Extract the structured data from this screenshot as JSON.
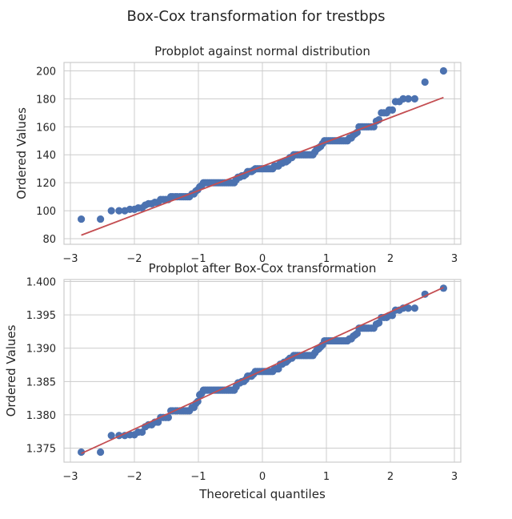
{
  "figure": {
    "title": "Box-Cox transformation for trestbps"
  },
  "chart_data": [
    {
      "type": "scatter",
      "title": "Probplot against normal distribution",
      "xlabel": "",
      "ylabel": "Ordered Values",
      "xlim": [
        -3.1,
        3.1
      ],
      "ylim": [
        76,
        206
      ],
      "xticks": [
        -3,
        -2,
        -1,
        0,
        1,
        2,
        3
      ],
      "yticks": [
        80,
        100,
        120,
        140,
        160,
        180,
        200
      ],
      "ytick_decimals": 0,
      "grid": true,
      "point_color": "#4c72b0",
      "line_color": "#c44e52",
      "fit_line": {
        "x": [
          -2.83,
          2.83
        ],
        "y": [
          82.5,
          181
        ]
      },
      "points": [
        [
          -2.83,
          94
        ],
        [
          -2.53,
          94
        ],
        [
          -2.36,
          100
        ],
        [
          -2.24,
          100
        ],
        [
          -2.15,
          100
        ],
        [
          -2.07,
          101
        ],
        [
          -2.0,
          101
        ],
        [
          -1.94,
          102
        ],
        [
          -1.88,
          102
        ],
        [
          -1.83,
          104
        ],
        [
          -1.78,
          105
        ],
        [
          -1.73,
          105
        ],
        [
          -1.68,
          106
        ],
        [
          -1.63,
          106
        ],
        [
          -1.59,
          108
        ],
        [
          -1.55,
          108
        ],
        [
          -1.51,
          108
        ],
        [
          -1.47,
          108
        ],
        [
          -1.43,
          110
        ],
        [
          -1.4,
          110
        ],
        [
          -1.36,
          110
        ],
        [
          -1.33,
          110
        ],
        [
          -1.29,
          110
        ],
        [
          -1.26,
          110
        ],
        [
          -1.23,
          110
        ],
        [
          -1.2,
          110
        ],
        [
          -1.17,
          110
        ],
        [
          -1.14,
          110
        ],
        [
          -1.1,
          112
        ],
        [
          -1.07,
          112
        ],
        [
          -1.04,
          114
        ],
        [
          -1.01,
          115
        ],
        [
          -0.98,
          117
        ],
        [
          -0.95,
          118
        ],
        [
          -0.92,
          120
        ],
        [
          -0.89,
          120
        ],
        [
          -0.86,
          120
        ],
        [
          -0.83,
          120
        ],
        [
          -0.8,
          120
        ],
        [
          -0.77,
          120
        ],
        [
          -0.74,
          120
        ],
        [
          -0.71,
          120
        ],
        [
          -0.68,
          120
        ],
        [
          -0.65,
          120
        ],
        [
          -0.62,
          120
        ],
        [
          -0.59,
          120
        ],
        [
          -0.56,
          120
        ],
        [
          -0.53,
          120
        ],
        [
          -0.5,
          120
        ],
        [
          -0.47,
          120
        ],
        [
          -0.44,
          120
        ],
        [
          -0.41,
          122
        ],
        [
          -0.38,
          124
        ],
        [
          -0.35,
          124
        ],
        [
          -0.32,
          125
        ],
        [
          -0.29,
          125
        ],
        [
          -0.26,
          126
        ],
        [
          -0.23,
          128
        ],
        [
          -0.2,
          128
        ],
        [
          -0.17,
          128
        ],
        [
          -0.14,
          129
        ],
        [
          -0.11,
          130
        ],
        [
          -0.08,
          130
        ],
        [
          -0.05,
          130
        ],
        [
          -0.02,
          130
        ],
        [
          0.01,
          130
        ],
        [
          0.04,
          130
        ],
        [
          0.07,
          130
        ],
        [
          0.1,
          130
        ],
        [
          0.13,
          130
        ],
        [
          0.16,
          130
        ],
        [
          0.19,
          132
        ],
        [
          0.22,
          132
        ],
        [
          0.25,
          132
        ],
        [
          0.28,
          134
        ],
        [
          0.31,
          134
        ],
        [
          0.34,
          135
        ],
        [
          0.37,
          135
        ],
        [
          0.4,
          136
        ],
        [
          0.43,
          138
        ],
        [
          0.46,
          138
        ],
        [
          0.49,
          140
        ],
        [
          0.52,
          140
        ],
        [
          0.55,
          140
        ],
        [
          0.58,
          140
        ],
        [
          0.61,
          140
        ],
        [
          0.64,
          140
        ],
        [
          0.67,
          140
        ],
        [
          0.7,
          140
        ],
        [
          0.73,
          140
        ],
        [
          0.76,
          140
        ],
        [
          0.79,
          140
        ],
        [
          0.82,
          142
        ],
        [
          0.85,
          144
        ],
        [
          0.88,
          145
        ],
        [
          0.91,
          146
        ],
        [
          0.94,
          148
        ],
        [
          0.97,
          150
        ],
        [
          1.0,
          150
        ],
        [
          1.03,
          150
        ],
        [
          1.06,
          150
        ],
        [
          1.09,
          150
        ],
        [
          1.12,
          150
        ],
        [
          1.15,
          150
        ],
        [
          1.18,
          150
        ],
        [
          1.21,
          150
        ],
        [
          1.24,
          150
        ],
        [
          1.27,
          150
        ],
        [
          1.3,
          150
        ],
        [
          1.33,
          150
        ],
        [
          1.36,
          152
        ],
        [
          1.39,
          152
        ],
        [
          1.42,
          154
        ],
        [
          1.45,
          155
        ],
        [
          1.48,
          156
        ],
        [
          1.51,
          160
        ],
        [
          1.54,
          160
        ],
        [
          1.57,
          160
        ],
        [
          1.6,
          160
        ],
        [
          1.63,
          160
        ],
        [
          1.66,
          160
        ],
        [
          1.7,
          160
        ],
        [
          1.74,
          160
        ],
        [
          1.78,
          164
        ],
        [
          1.82,
          165
        ],
        [
          1.86,
          170
        ],
        [
          1.9,
          170
        ],
        [
          1.94,
          170
        ],
        [
          1.98,
          172
        ],
        [
          2.03,
          172
        ],
        [
          2.08,
          178
        ],
        [
          2.14,
          178
        ],
        [
          2.2,
          180
        ],
        [
          2.28,
          180
        ],
        [
          2.38,
          180
        ],
        [
          2.54,
          192
        ],
        [
          2.83,
          200
        ]
      ]
    },
    {
      "type": "scatter",
      "title": "Probplot after Box-Cox transformation",
      "xlabel": "Theoretical quantiles",
      "ylabel": "Ordered Values",
      "xlim": [
        -3.1,
        3.1
      ],
      "ylim": [
        1.3729,
        1.4003
      ],
      "xticks": [
        -3,
        -2,
        -1,
        0,
        1,
        2,
        3
      ],
      "yticks": [
        1.375,
        1.38,
        1.385,
        1.39,
        1.395,
        1.4
      ],
      "ytick_decimals": 3,
      "grid": true,
      "point_color": "#4c72b0",
      "line_color": "#c44e52",
      "fit_line": {
        "x": [
          -2.83,
          2.83
        ],
        "y": [
          1.3742,
          1.3991
        ]
      },
      "points": [
        [
          -2.83,
          1.3744
        ],
        [
          -2.53,
          1.3744
        ],
        [
          -2.36,
          1.3769
        ],
        [
          -2.24,
          1.3769
        ],
        [
          -2.15,
          1.3769
        ],
        [
          -2.07,
          1.377
        ],
        [
          -2.0,
          1.377
        ],
        [
          -1.94,
          1.3774
        ],
        [
          -1.88,
          1.3774
        ],
        [
          -1.83,
          1.3782
        ],
        [
          -1.78,
          1.3785
        ],
        [
          -1.73,
          1.3785
        ],
        [
          -1.68,
          1.3789
        ],
        [
          -1.63,
          1.3789
        ],
        [
          -1.59,
          1.3796
        ],
        [
          -1.55,
          1.3796
        ],
        [
          -1.51,
          1.3796
        ],
        [
          -1.47,
          1.3796
        ],
        [
          -1.43,
          1.3806
        ],
        [
          -1.4,
          1.3806
        ],
        [
          -1.36,
          1.3806
        ],
        [
          -1.33,
          1.3806
        ],
        [
          -1.29,
          1.3806
        ],
        [
          -1.26,
          1.3806
        ],
        [
          -1.23,
          1.3806
        ],
        [
          -1.2,
          1.3806
        ],
        [
          -1.17,
          1.3806
        ],
        [
          -1.14,
          1.3806
        ],
        [
          -1.1,
          1.3811
        ],
        [
          -1.07,
          1.3811
        ],
        [
          -1.04,
          1.3817
        ],
        [
          -1.01,
          1.382
        ],
        [
          -0.98,
          1.383
        ],
        [
          -0.95,
          1.3832
        ],
        [
          -0.92,
          1.3837
        ],
        [
          -0.89,
          1.3837
        ],
        [
          -0.86,
          1.3837
        ],
        [
          -0.83,
          1.3837
        ],
        [
          -0.8,
          1.3837
        ],
        [
          -0.77,
          1.3837
        ],
        [
          -0.74,
          1.3837
        ],
        [
          -0.71,
          1.3837
        ],
        [
          -0.68,
          1.3837
        ],
        [
          -0.65,
          1.3837
        ],
        [
          -0.62,
          1.3837
        ],
        [
          -0.59,
          1.3837
        ],
        [
          -0.56,
          1.3837
        ],
        [
          -0.53,
          1.3837
        ],
        [
          -0.5,
          1.3837
        ],
        [
          -0.47,
          1.3837
        ],
        [
          -0.44,
          1.3837
        ],
        [
          -0.41,
          1.3842
        ],
        [
          -0.38,
          1.3848
        ],
        [
          -0.35,
          1.3848
        ],
        [
          -0.32,
          1.385
        ],
        [
          -0.29,
          1.385
        ],
        [
          -0.26,
          1.3853
        ],
        [
          -0.23,
          1.3858
        ],
        [
          -0.2,
          1.3858
        ],
        [
          -0.17,
          1.3858
        ],
        [
          -0.14,
          1.3861
        ],
        [
          -0.11,
          1.3865
        ],
        [
          -0.08,
          1.3865
        ],
        [
          -0.05,
          1.3865
        ],
        [
          -0.02,
          1.3865
        ],
        [
          0.01,
          1.3865
        ],
        [
          0.04,
          1.3865
        ],
        [
          0.07,
          1.3865
        ],
        [
          0.1,
          1.3865
        ],
        [
          0.13,
          1.3865
        ],
        [
          0.16,
          1.3865
        ],
        [
          0.19,
          1.3869
        ],
        [
          0.22,
          1.3869
        ],
        [
          0.25,
          1.3869
        ],
        [
          0.28,
          1.3876
        ],
        [
          0.31,
          1.3876
        ],
        [
          0.34,
          1.3879
        ],
        [
          0.37,
          1.3879
        ],
        [
          0.4,
          1.3882
        ],
        [
          0.43,
          1.3885
        ],
        [
          0.46,
          1.3885
        ],
        [
          0.49,
          1.3889
        ],
        [
          0.52,
          1.3889
        ],
        [
          0.55,
          1.3889
        ],
        [
          0.58,
          1.3889
        ],
        [
          0.61,
          1.3889
        ],
        [
          0.64,
          1.3889
        ],
        [
          0.67,
          1.3889
        ],
        [
          0.7,
          1.3889
        ],
        [
          0.73,
          1.3889
        ],
        [
          0.76,
          1.3889
        ],
        [
          0.79,
          1.3889
        ],
        [
          0.82,
          1.3893
        ],
        [
          0.85,
          1.3897
        ],
        [
          0.88,
          1.3899
        ],
        [
          0.91,
          1.3902
        ],
        [
          0.94,
          1.3905
        ],
        [
          0.97,
          1.3911
        ],
        [
          1.0,
          1.3911
        ],
        [
          1.03,
          1.3911
        ],
        [
          1.06,
          1.3911
        ],
        [
          1.09,
          1.3911
        ],
        [
          1.12,
          1.3911
        ],
        [
          1.15,
          1.3911
        ],
        [
          1.18,
          1.3911
        ],
        [
          1.21,
          1.3911
        ],
        [
          1.24,
          1.3911
        ],
        [
          1.27,
          1.3911
        ],
        [
          1.3,
          1.3911
        ],
        [
          1.33,
          1.3911
        ],
        [
          1.36,
          1.3914
        ],
        [
          1.39,
          1.3914
        ],
        [
          1.42,
          1.3918
        ],
        [
          1.45,
          1.392
        ],
        [
          1.48,
          1.3922
        ],
        [
          1.51,
          1.393
        ],
        [
          1.54,
          1.393
        ],
        [
          1.57,
          1.393
        ],
        [
          1.6,
          1.393
        ],
        [
          1.63,
          1.393
        ],
        [
          1.66,
          1.393
        ],
        [
          1.7,
          1.393
        ],
        [
          1.74,
          1.393
        ],
        [
          1.78,
          1.3936
        ],
        [
          1.82,
          1.3938
        ],
        [
          1.86,
          1.3946
        ],
        [
          1.9,
          1.3946
        ],
        [
          1.94,
          1.3946
        ],
        [
          1.98,
          1.3949
        ],
        [
          2.03,
          1.3949
        ],
        [
          2.08,
          1.3957
        ],
        [
          2.14,
          1.3957
        ],
        [
          2.2,
          1.396
        ],
        [
          2.28,
          1.396
        ],
        [
          2.38,
          1.396
        ],
        [
          2.54,
          1.3981
        ],
        [
          2.83,
          1.399
        ]
      ]
    }
  ]
}
